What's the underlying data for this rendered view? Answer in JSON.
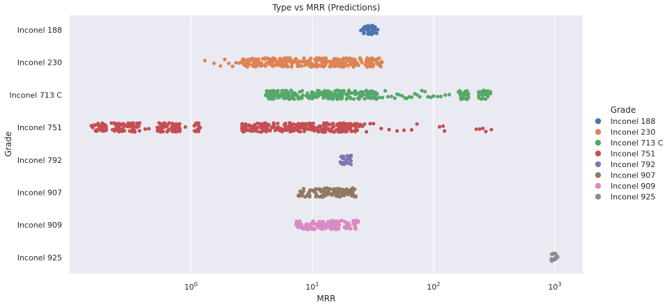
{
  "chart_data": {
    "type": "scatter",
    "title": "Type vs MRR (Predictions)",
    "xlabel": "MRR",
    "ylabel": "Grade",
    "xscale": "log",
    "xlim": [
      0.1,
      1700
    ],
    "x_ticks": [
      1,
      10,
      100,
      1000
    ],
    "x_tick_labels": [
      {
        "base": "10",
        "exp": "0"
      },
      {
        "base": "10",
        "exp": "1"
      },
      {
        "base": "10",
        "exp": "2"
      },
      {
        "base": "10",
        "exp": "3"
      }
    ],
    "grid": true,
    "legend": {
      "title": "Grade",
      "placement": "right"
    },
    "categories": [
      "Inconel 188",
      "Inconel 230",
      "Inconel 713 C",
      "Inconel 751",
      "Inconel 792",
      "Inconel 907",
      "Inconel 909",
      "Inconel 925"
    ],
    "series": [
      {
        "name": "Inconel 188",
        "color": "#4c72b0",
        "ranges": [
          [
            25,
            35
          ]
        ],
        "points": []
      },
      {
        "name": "Inconel 230",
        "color": "#dd8452",
        "ranges": [
          [
            2.6,
            38
          ]
        ],
        "points": [
          1.3,
          1.55,
          1.75,
          1.9,
          2.05,
          2.2,
          2.35,
          2.5
        ]
      },
      {
        "name": "Inconel 713 C",
        "color": "#55a868",
        "ranges": [
          [
            4.1,
            36
          ],
          [
            160,
            195
          ],
          [
            230,
            295
          ]
        ],
        "points": [
          38,
          40,
          42,
          45,
          48,
          50,
          52,
          55,
          58,
          60,
          63,
          66,
          70,
          73,
          77,
          80,
          85,
          90,
          95,
          100,
          108,
          115,
          125,
          135
        ]
      },
      {
        "name": "Inconel 751",
        "color": "#c44e52",
        "ranges": [
          [
            0.15,
            0.2
          ],
          [
            0.22,
            0.38
          ],
          [
            0.52,
            0.82
          ],
          [
            1.05,
            1.2
          ],
          [
            2.6,
            6.0
          ],
          [
            6.0,
            24
          ]
        ],
        "points": [
          0.42,
          0.45,
          0.9,
          24.5,
          25,
          26,
          27,
          28,
          30,
          32,
          37,
          43,
          50,
          57,
          66,
          73,
          112,
          120,
          123,
          225,
          240,
          255,
          270,
          300
        ]
      },
      {
        "name": "Inconel 792",
        "color": "#8172b3",
        "ranges": [
          [
            17,
            21
          ]
        ],
        "points": []
      },
      {
        "name": "Inconel 907",
        "color": "#937860",
        "ranges": [
          [
            7.5,
            19
          ],
          [
            19,
            23
          ]
        ],
        "points": []
      },
      {
        "name": "Inconel 909",
        "color": "#da8bc3",
        "ranges": [
          [
            7.3,
            24
          ]
        ],
        "points": []
      },
      {
        "name": "Inconel 925",
        "color": "#8c8c8c",
        "ranges": [
          [
            920,
            1060
          ]
        ],
        "points": []
      }
    ]
  }
}
